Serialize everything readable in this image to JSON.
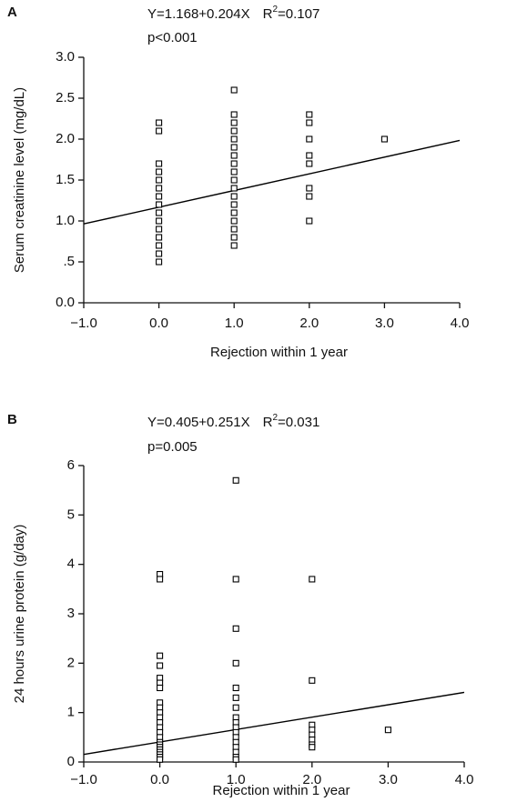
{
  "chart_data": [
    {
      "type": "scatter",
      "panel_label": "A",
      "annotation": {
        "equation": "Y=1.168+0.204X",
        "r2_symbol": "R",
        "r2_exponent": "2",
        "r2_value": "=0.107",
        "p": "p<0.001"
      },
      "x_label": "Rejection within 1 year",
      "y_label": "Serum creatinine level (mg/dL)",
      "x": [
        0,
        0,
        0,
        0,
        0,
        0,
        0,
        0,
        0,
        0,
        0,
        0,
        0,
        0,
        0,
        1,
        1,
        1,
        1,
        1,
        1,
        1,
        1,
        1,
        1,
        1,
        1,
        1,
        1,
        1,
        1,
        1,
        1,
        2,
        2,
        2,
        2,
        2,
        2,
        2,
        2,
        3
      ],
      "values": [
        2.2,
        2.1,
        1.7,
        1.6,
        1.5,
        1.4,
        1.3,
        1.2,
        1.1,
        1.0,
        0.9,
        0.8,
        0.7,
        0.6,
        0.5,
        2.6,
        2.3,
        2.2,
        2.1,
        2.0,
        1.9,
        1.8,
        1.7,
        1.6,
        1.5,
        1.4,
        1.3,
        1.2,
        1.1,
        1.0,
        0.9,
        0.8,
        0.7,
        2.3,
        2.2,
        2.0,
        1.8,
        1.7,
        1.4,
        1.3,
        1.0,
        2.0
      ],
      "fit": {
        "x": [
          -1,
          4
        ],
        "y": [
          0.964,
          1.984
        ]
      },
      "color": "#000000",
      "xlim": [
        -1,
        4
      ],
      "ylim": [
        0,
        3
      ],
      "xticks": [
        {
          "value": -1,
          "label": "−1.0"
        },
        {
          "value": 0,
          "label": "0.0"
        },
        {
          "value": 1,
          "label": "1.0"
        },
        {
          "value": 2,
          "label": "2.0"
        },
        {
          "value": 3,
          "label": "3.0"
        },
        {
          "value": 4,
          "label": "4.0"
        }
      ],
      "yticks": [
        {
          "value": 0,
          "label": "0.0"
        },
        {
          "value": 0.5,
          "label": ".5"
        },
        {
          "value": 1,
          "label": "1.0"
        },
        {
          "value": 1.5,
          "label": "1.5"
        },
        {
          "value": 2,
          "label": "2.0"
        },
        {
          "value": 2.5,
          "label": "2.5"
        },
        {
          "value": 3,
          "label": "3.0"
        }
      ]
    },
    {
      "type": "scatter",
      "panel_label": "B",
      "annotation": {
        "equation": "Y=0.405+0.251X",
        "r2_symbol": "R",
        "r2_exponent": "2",
        "r2_value": "=0.031",
        "p": "p=0.005"
      },
      "x_label": "Rejection within 1 year",
      "y_label": "24 hours urine protein (g/day)",
      "x": [
        0,
        0,
        0,
        0,
        0,
        0,
        0,
        0,
        0,
        0,
        0,
        0,
        0,
        0,
        0,
        0,
        0,
        0,
        0,
        0,
        0,
        0,
        0,
        1,
        1,
        1,
        1,
        1,
        1,
        1,
        1,
        1,
        1,
        1,
        1,
        1,
        1,
        1,
        1,
        1,
        2,
        2,
        2,
        2,
        2,
        2,
        2,
        2,
        3
      ],
      "values": [
        3.8,
        3.7,
        2.15,
        1.95,
        1.7,
        1.6,
        1.5,
        1.2,
        1.1,
        1.0,
        0.9,
        0.8,
        0.7,
        0.6,
        0.5,
        0.4,
        0.35,
        0.3,
        0.25,
        0.2,
        0.15,
        0.1,
        0.05,
        5.7,
        3.7,
        2.7,
        2.0,
        1.5,
        1.3,
        1.1,
        0.9,
        0.8,
        0.7,
        0.6,
        0.5,
        0.4,
        0.3,
        0.2,
        0.1,
        0.05,
        3.7,
        1.65,
        0.75,
        0.65,
        0.55,
        0.45,
        0.35,
        0.3,
        0.65
      ],
      "fit": {
        "x": [
          -1,
          4
        ],
        "y": [
          0.154,
          1.409
        ]
      },
      "color": "#000000",
      "xlim": [
        -1,
        4
      ],
      "ylim": [
        0,
        6
      ],
      "xticks": [
        {
          "value": -1,
          "label": "−1.0"
        },
        {
          "value": 0,
          "label": "0.0"
        },
        {
          "value": 1,
          "label": "1.0"
        },
        {
          "value": 2,
          "label": "2.0"
        },
        {
          "value": 3,
          "label": "3.0"
        },
        {
          "value": 4,
          "label": "4.0"
        }
      ],
      "yticks": [
        0,
        1,
        2,
        3,
        4,
        5,
        6
      ]
    }
  ]
}
